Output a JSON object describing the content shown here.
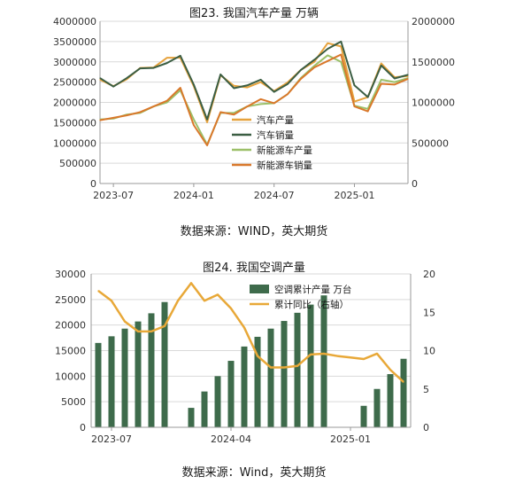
{
  "chart_data": [
    {
      "type": "line",
      "title": "图23. 我国汽车产量  万辆",
      "source": "数据来源：WIND，英大期货",
      "x_ticks": [
        "2023-07",
        "2024-01",
        "2024-07",
        "2025-01"
      ],
      "y_left_ticks": [
        "0",
        "500000",
        "1000000",
        "1500000",
        "2000000",
        "2500000",
        "3000000",
        "3500000",
        "4000000"
      ],
      "y_right_ticks": [
        "0",
        "500000",
        "1000000",
        "1500000",
        "2000000"
      ],
      "ylim_left": [
        0,
        4000000
      ],
      "ylim_right": [
        0,
        2000000
      ],
      "x": [
        "2023-06",
        "2023-07",
        "2023-08",
        "2023-09",
        "2023-10",
        "2023-11",
        "2023-12",
        "2024-01",
        "2024-02",
        "2024-03",
        "2024-04",
        "2024-05",
        "2024-06",
        "2024-07",
        "2024-08",
        "2024-09",
        "2024-10",
        "2024-11",
        "2024-12",
        "2025-01",
        "2025-02",
        "2025-03",
        "2025-04",
        "2025-05"
      ],
      "series": [
        {
          "name": "汽车产量",
          "axis": "left",
          "color": "#e6a23c",
          "values": [
            2560000,
            2400000,
            2570000,
            2850000,
            2860000,
            3100000,
            3100000,
            2400000,
            1510000,
            2670000,
            2410000,
            2370000,
            2500000,
            2280000,
            2490000,
            2800000,
            3000000,
            3460000,
            3380000,
            2020000,
            2130000,
            2960000,
            2620000,
            2650000
          ]
        },
        {
          "name": "汽车销量",
          "axis": "left",
          "color": "#3b5e43",
          "values": [
            2600000,
            2390000,
            2600000,
            2840000,
            2850000,
            2970000,
            3150000,
            2440000,
            1580000,
            2690000,
            2350000,
            2420000,
            2560000,
            2260000,
            2450000,
            2800000,
            3050000,
            3320000,
            3500000,
            2420000,
            2130000,
            2910000,
            2590000,
            2680000
          ]
        },
        {
          "name": "新能源车产量",
          "axis": "right",
          "color": "#9cc069",
          "values": [
            790000,
            800000,
            850000,
            870000,
            950000,
            1000000,
            1150000,
            790000,
            480000,
            870000,
            870000,
            950000,
            980000,
            990000,
            1100000,
            1300000,
            1450000,
            1580000,
            1500000,
            960000,
            920000,
            1280000,
            1250000,
            1300000
          ]
        },
        {
          "name": "新能源车销量",
          "axis": "right",
          "color": "#d9782b",
          "values": [
            780000,
            810000,
            840000,
            880000,
            950000,
            1020000,
            1180000,
            720000,
            470000,
            880000,
            850000,
            950000,
            1040000,
            990000,
            1100000,
            1290000,
            1430000,
            1510000,
            1590000,
            950000,
            890000,
            1230000,
            1220000,
            1290000
          ]
        }
      ],
      "legend_position": "inside-right"
    },
    {
      "type": "bar",
      "title": "图24. 我国空调产量",
      "source": "数据来源：Wind，英大期货",
      "x_ticks": [
        "2023-07",
        "2024-04",
        "2025-01"
      ],
      "y_left_ticks": [
        "0",
        "5000",
        "10000",
        "15000",
        "20000",
        "25000",
        "30000"
      ],
      "y_right_ticks": [
        "0",
        "5",
        "10",
        "15",
        "20"
      ],
      "ylim_left": [
        0,
        30000
      ],
      "ylim_right": [
        0,
        20
      ],
      "x": [
        "2023-06",
        "2023-07",
        "2023-08",
        "2023-09",
        "2023-10",
        "2023-11",
        "2023-12",
        "2024-01",
        "2024-02",
        "2024-03",
        "2024-04",
        "2024-05",
        "2024-06",
        "2024-07",
        "2024-08",
        "2024-09",
        "2024-10",
        "2024-11",
        "2024-12",
        "2025-01",
        "2025-02",
        "2025-03",
        "2025-04",
        "2025-05"
      ],
      "series": [
        {
          "name": "空调累计产量  万台",
          "axis": "left",
          "type": "bar",
          "color": "#3e6b4b",
          "values": [
            16500,
            17800,
            19300,
            20700,
            22300,
            24500,
            null,
            3800,
            7000,
            10000,
            13000,
            15800,
            17700,
            19300,
            20800,
            22400,
            24000,
            25800,
            null,
            null,
            4200,
            7500,
            10400,
            13400
          ]
        },
        {
          "name": "累计同比（右轴）",
          "axis": "right",
          "type": "line",
          "color": "#e8a838",
          "values": [
            17.8,
            16.5,
            13.8,
            12.5,
            12.5,
            13.2,
            16.5,
            18.8,
            16.5,
            17.3,
            15.5,
            13.0,
            9.3,
            7.8,
            7.8,
            8.0,
            9.5,
            9.6,
            9.3,
            9.1,
            8.9,
            9.6,
            7.5,
            5.9
          ]
        }
      ],
      "legend_position": "top-inside"
    }
  ]
}
